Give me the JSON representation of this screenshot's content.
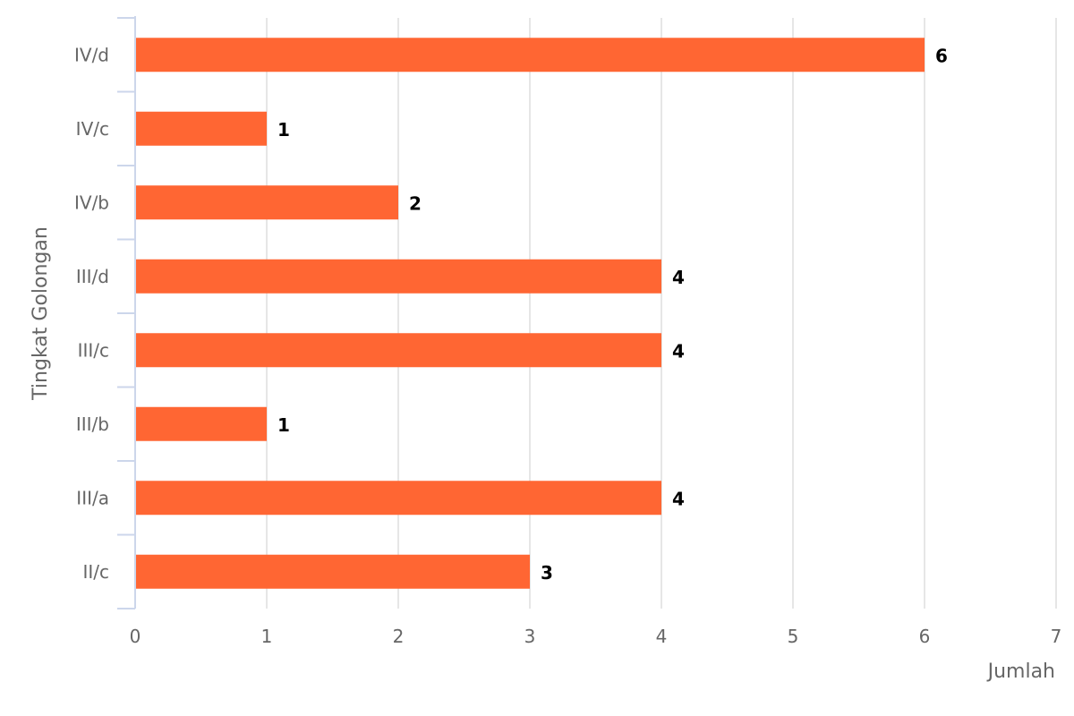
{
  "chart_data": {
    "type": "bar",
    "orientation": "horizontal",
    "categories": [
      "IV/d",
      "IV/c",
      "IV/b",
      "III/d",
      "III/c",
      "III/b",
      "III/a",
      "II/c"
    ],
    "values": [
      6,
      1,
      2,
      4,
      4,
      1,
      4,
      3
    ],
    "title": "",
    "xlabel": "Jumlah",
    "ylabel": "Tingkat Golongan",
    "xlim": [
      0,
      7
    ],
    "x_ticks": [
      "0",
      "1",
      "2",
      "3",
      "4",
      "5",
      "6",
      "7"
    ],
    "grid": true,
    "data_labels": true,
    "legend": false,
    "bar_color": "#ff6633"
  },
  "colors": {
    "bar": "#ff6633",
    "grid": "#e6e6e6",
    "axis": "#ccd6eb",
    "tick_text": "#666666",
    "label_text": "#000000"
  }
}
